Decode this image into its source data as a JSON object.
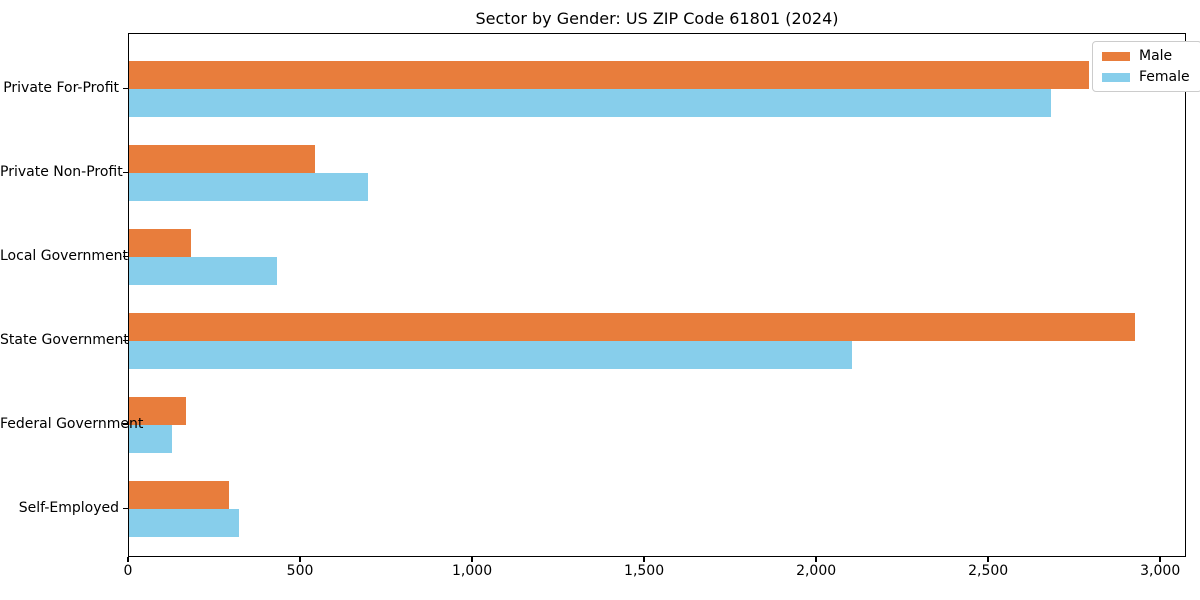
{
  "chart_data": {
    "type": "bar",
    "orientation": "horizontal",
    "title": "Sector by Gender: US ZIP Code 61801 (2024)",
    "categories": [
      "Private For-Profit",
      "Private Non-Profit",
      "Local Government",
      "State Government",
      "Federal Government",
      "Self-Employed"
    ],
    "series": [
      {
        "name": "Male",
        "color": "#e87d3c",
        "values": [
          2790,
          540,
          180,
          2925,
          165,
          290
        ]
      },
      {
        "name": "Female",
        "color": "#87ceeb",
        "values": [
          2680,
          695,
          430,
          2100,
          125,
          320
        ]
      }
    ],
    "xlabel": "",
    "ylabel": "",
    "xlim": [
      0,
      3075
    ],
    "xticks": {
      "values": [
        0,
        500,
        1000,
        1500,
        2000,
        2500,
        3000
      ],
      "labels": [
        "0",
        "500",
        "1,000",
        "1,500",
        "2,000",
        "2,500",
        "3,000"
      ]
    },
    "grid": false,
    "legend": {
      "position": "upper right"
    },
    "colors": {
      "background": "#ffffff",
      "frame": "#000000"
    }
  }
}
